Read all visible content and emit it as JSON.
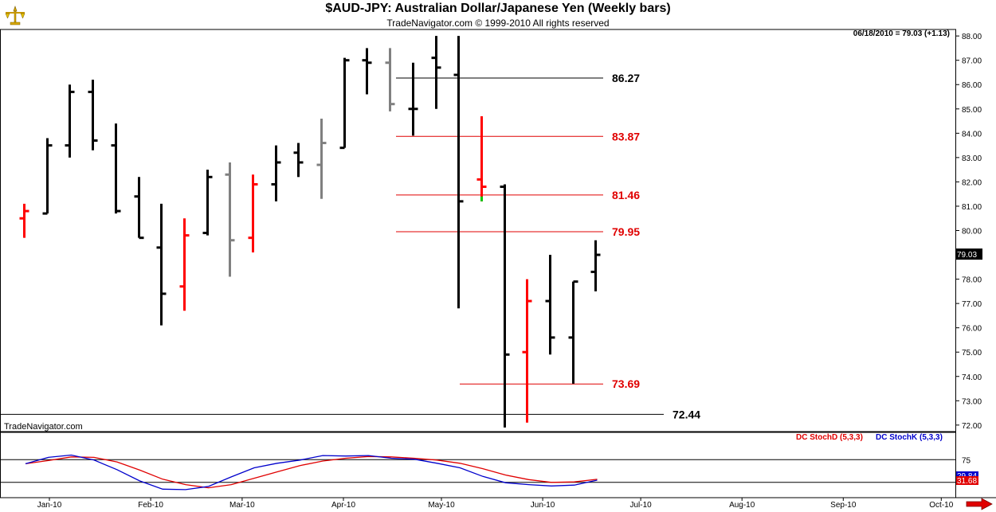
{
  "header": {
    "title": "$AUD-JPY:  Australian Dollar/Japanese Yen  (Weekly bars)",
    "subtitle": "TradeNavigator.com © 1999-2010 All rights reserved"
  },
  "last_reading": "06/18/2010 = 79.03 (+1.13)",
  "watermark": "TradeNavigator.com",
  "price_tag": "79.03",
  "colors": {
    "up_bar": "#000000",
    "down_bar": "#ff0000",
    "neutral_bar": "#808080",
    "signal_dot": "#00cc00",
    "stoch_d": "#e00000",
    "stoch_k": "#0000cc",
    "level_red": "#e00000",
    "level_black": "#000000",
    "arrow": "#e00000"
  },
  "icons": {
    "logo": "scale-icon",
    "nav": "arrow-right-icon"
  },
  "chart_data": [
    {
      "type": "bar",
      "subtype": "ohlc",
      "title": "$AUD-JPY:  Australian Dollar/Japanese Yen  (Weekly bars)",
      "xlabel": "",
      "ylabel": "",
      "x_tick_labels": [
        "Jan-10",
        "Feb-10",
        "Mar-10",
        "Apr-10",
        "May-10",
        "Jun-10",
        "Jul-10",
        "Aug-10",
        "Sep-10",
        "Oct-10"
      ],
      "y_ticks": [
        72,
        73,
        74,
        75,
        76,
        77,
        78,
        79,
        80,
        81,
        82,
        83,
        84,
        85,
        86,
        87,
        88
      ],
      "ylim": [
        71.7,
        88.3
      ],
      "series": [
        {
          "date": "2010-01-01",
          "open": 80.5,
          "high": 81.1,
          "low": 79.7,
          "close": 80.8,
          "color": "red"
        },
        {
          "date": "2010-01-08",
          "open": 80.7,
          "high": 83.8,
          "low": 80.7,
          "close": 83.5,
          "color": "black"
        },
        {
          "date": "2010-01-15",
          "open": 83.5,
          "high": 86.0,
          "low": 83.0,
          "close": 85.7,
          "color": "black"
        },
        {
          "date": "2010-01-22",
          "open": 85.7,
          "high": 86.2,
          "low": 83.3,
          "close": 83.7,
          "color": "black"
        },
        {
          "date": "2010-01-29",
          "open": 83.5,
          "high": 84.4,
          "low": 80.7,
          "close": 80.8,
          "color": "black"
        },
        {
          "date": "2010-02-05",
          "open": 81.4,
          "high": 82.2,
          "low": 79.7,
          "close": 79.7,
          "color": "black"
        },
        {
          "date": "2010-02-12",
          "open": 79.3,
          "high": 81.1,
          "low": 76.1,
          "close": 77.4,
          "color": "black"
        },
        {
          "date": "2010-02-19",
          "open": 77.7,
          "high": 80.5,
          "low": 76.7,
          "close": 79.8,
          "color": "red"
        },
        {
          "date": "2010-02-26",
          "open": 79.9,
          "high": 82.5,
          "low": 79.8,
          "close": 82.2,
          "color": "black"
        },
        {
          "date": "2010-03-05",
          "open": 82.3,
          "high": 82.8,
          "low": 78.1,
          "close": 79.6,
          "color": "gray"
        },
        {
          "date": "2010-03-12",
          "open": 79.7,
          "high": 82.3,
          "low": 79.1,
          "close": 81.9,
          "color": "red"
        },
        {
          "date": "2010-03-19",
          "open": 81.9,
          "high": 83.5,
          "low": 81.2,
          "close": 82.8,
          "color": "black"
        },
        {
          "date": "2010-03-26",
          "open": 83.2,
          "high": 83.6,
          "low": 82.2,
          "close": 82.8,
          "color": "black"
        },
        {
          "date": "2010-04-02",
          "open": 82.7,
          "high": 84.6,
          "low": 81.3,
          "close": 83.6,
          "color": "gray"
        },
        {
          "date": "2010-04-09",
          "open": 83.4,
          "high": 87.1,
          "low": 83.4,
          "close": 87.0,
          "color": "black"
        },
        {
          "date": "2010-04-16",
          "open": 87.0,
          "high": 87.5,
          "low": 85.6,
          "close": 86.9,
          "color": "black"
        },
        {
          "date": "2010-04-23",
          "open": 86.9,
          "high": 87.5,
          "low": 84.9,
          "close": 85.2,
          "color": "gray"
        },
        {
          "date": "2010-04-30",
          "open": 85.0,
          "high": 86.9,
          "low": 83.9,
          "close": 85.0,
          "color": "black"
        },
        {
          "date": "2010-05-07",
          "open": 87.1,
          "high": 88.0,
          "low": 85.0,
          "close": 86.7,
          "color": "black"
        },
        {
          "date": "2010-05-14",
          "open": 86.4,
          "high": 88.0,
          "low": 76.8,
          "close": 81.2,
          "color": "black"
        },
        {
          "date": "2010-05-21",
          "open": 82.1,
          "high": 84.7,
          "low": 81.2,
          "close": 81.8,
          "color": "red"
        },
        {
          "date": "2010-05-28",
          "open": 81.8,
          "high": 81.9,
          "low": 71.9,
          "close": 74.9,
          "color": "black"
        },
        {
          "date": "2010-06-04",
          "open": 75.0,
          "high": 78.0,
          "low": 72.1,
          "close": 77.1,
          "color": "red"
        },
        {
          "date": "2010-06-11",
          "open": 77.1,
          "high": 79.0,
          "low": 74.9,
          "close": 75.6,
          "color": "black"
        },
        {
          "date": "2010-06-18",
          "open": 75.6,
          "high": 77.9,
          "low": 73.7,
          "close": 77.9,
          "color": "black"
        },
        {
          "date": "2010-06-25",
          "open": 78.3,
          "high": 79.6,
          "low": 77.5,
          "close": 79.0,
          "color": "black"
        }
      ],
      "levels": [
        {
          "value": 86.27,
          "label": "86.27",
          "color": "black"
        },
        {
          "value": 83.87,
          "label": "83.87",
          "color": "red"
        },
        {
          "value": 81.46,
          "label": "81.46",
          "color": "red"
        },
        {
          "value": 79.95,
          "label": "79.95",
          "color": "red"
        },
        {
          "value": 73.69,
          "label": "73.69",
          "color": "red"
        },
        {
          "value": 72.44,
          "label": "72.44",
          "color": "black"
        }
      ],
      "signal_marker": {
        "date": "2010-05-21",
        "value": 81.3
      },
      "last_value_tag": 79.03,
      "grid": false,
      "legend": "none"
    },
    {
      "type": "line",
      "title": "",
      "y_tick_labels": [
        "75"
      ],
      "ylim": [
        0,
        100
      ],
      "legend": "top-right",
      "x": [
        "2010-01-01",
        "2010-01-08",
        "2010-01-15",
        "2010-01-22",
        "2010-01-29",
        "2010-02-05",
        "2010-02-12",
        "2010-02-19",
        "2010-02-26",
        "2010-03-05",
        "2010-03-12",
        "2010-03-19",
        "2010-03-26",
        "2010-04-02",
        "2010-04-09",
        "2010-04-16",
        "2010-04-23",
        "2010-04-30",
        "2010-05-07",
        "2010-05-14",
        "2010-05-21",
        "2010-05-28",
        "2010-06-04",
        "2010-06-11",
        "2010-06-18",
        "2010-06-25"
      ],
      "series": [
        {
          "name": "DC StochD (5,3,3)",
          "color": "red",
          "values": [
            66,
            73,
            81,
            80,
            70,
            52,
            32,
            20,
            13,
            20,
            34,
            48,
            62,
            72,
            78,
            82,
            81,
            78,
            74,
            67,
            55,
            41,
            31,
            25,
            26,
            31.68
          ]
        },
        {
          "name": "DC StochK (5,3,3)",
          "color": "blue",
          "values": [
            66,
            80,
            85,
            74,
            53,
            28,
            10,
            9,
            16,
            37,
            57,
            67,
            74,
            84,
            83,
            84,
            78,
            76,
            67,
            57,
            38,
            24,
            20,
            17,
            19,
            29.84
          ]
        }
      ],
      "last_values": {
        "stoch_d": "31.68",
        "stoch_k": "29.84"
      }
    }
  ]
}
